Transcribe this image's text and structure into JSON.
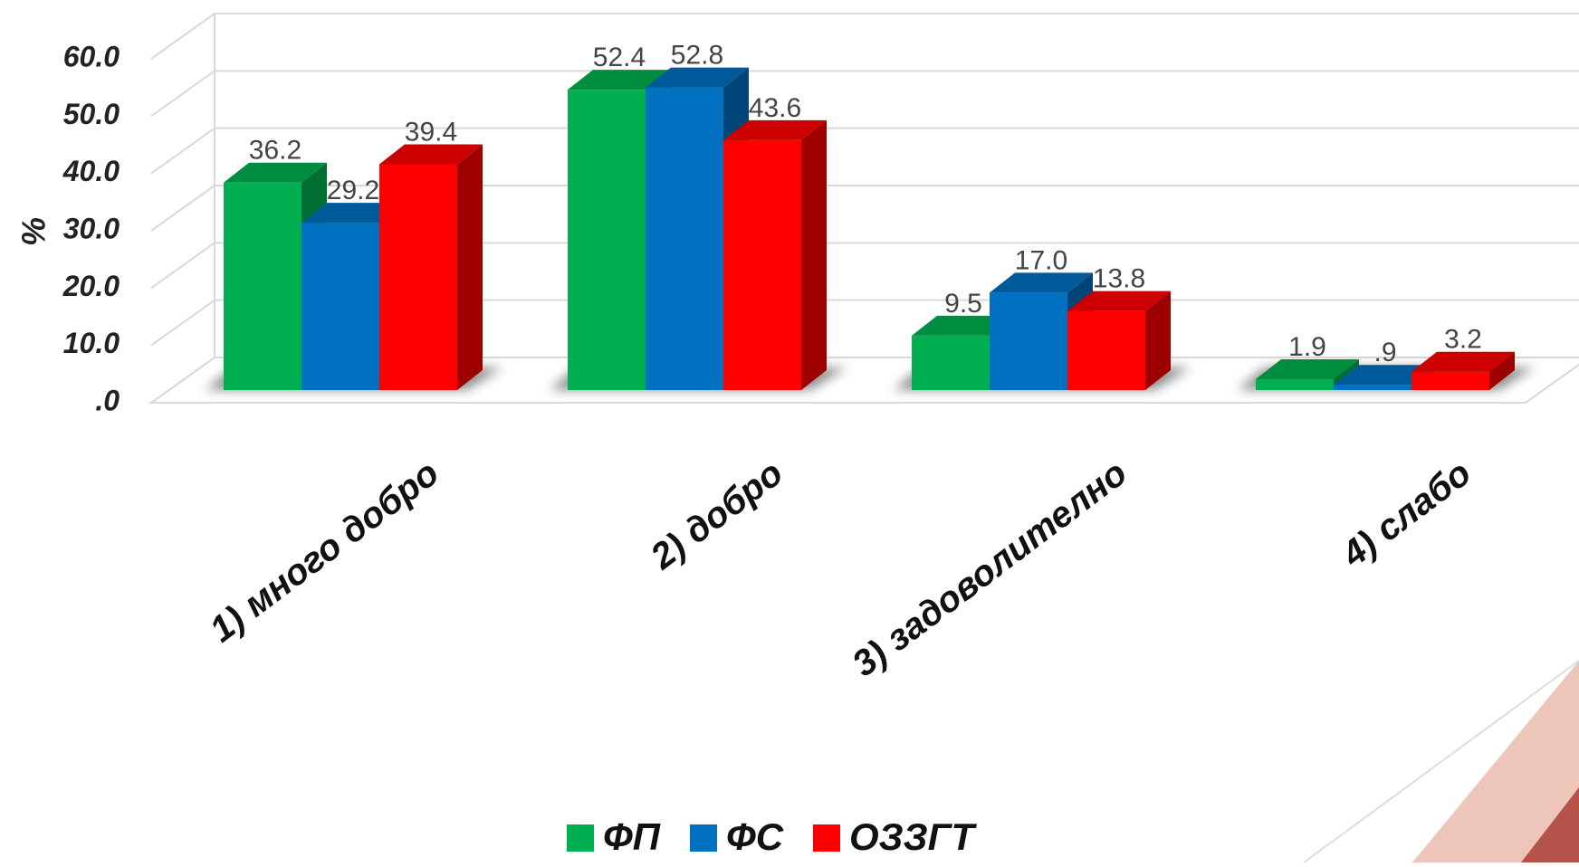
{
  "chart_data": {
    "type": "bar",
    "y_label": "%",
    "categories": [
      "1) много добро",
      "2) добро",
      "3) задоволително",
      "4) слабо"
    ],
    "series": [
      {
        "name": "ФП",
        "color": "#00b050",
        "values": [
          36.2,
          52.4,
          9.5,
          1.9
        ]
      },
      {
        "name": "ФС",
        "color": "#0070c0",
        "values": [
          29.2,
          52.8,
          17.0,
          0.9
        ],
        "value_labels": [
          "29.2",
          "52.8",
          "17.0",
          ".9"
        ]
      },
      {
        "name": "ОЗЗГТ",
        "color": "#ff0000",
        "values": [
          39.4,
          43.6,
          13.8,
          3.2
        ]
      }
    ],
    "ylim": [
      0,
      60
    ],
    "yticks": [
      {
        "value": 0,
        "label": ".0"
      },
      {
        "value": 10,
        "label": "10.0"
      },
      {
        "value": 20,
        "label": "20.0"
      },
      {
        "value": 30,
        "label": "30.0"
      },
      {
        "value": 40,
        "label": "40.0"
      },
      {
        "value": 50,
        "label": "50.0"
      },
      {
        "value": 60,
        "label": "60.0"
      }
    ],
    "grid": true,
    "legend": "bottom"
  }
}
